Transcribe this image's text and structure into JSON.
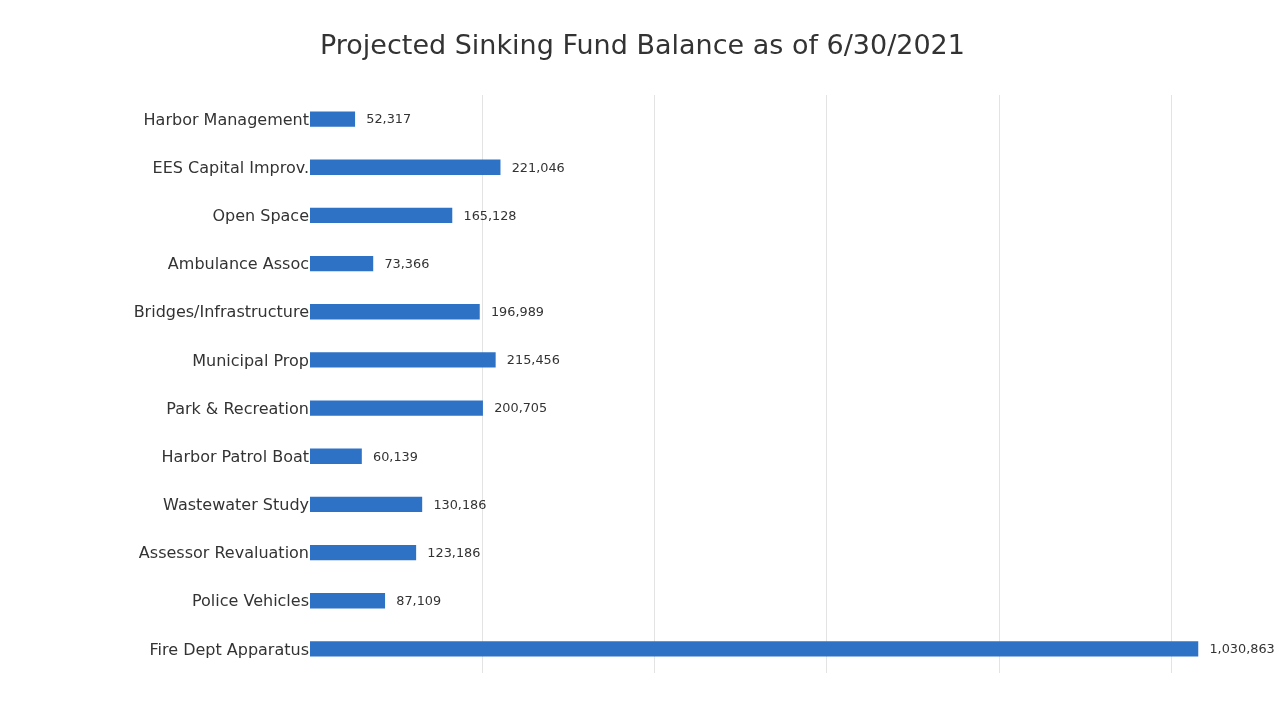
{
  "chart_data": {
    "type": "bar",
    "orientation": "horizontal",
    "title": "Projected Sinking Fund Balance as of 6/30/2021",
    "categories": [
      "Harbor Management",
      "EES Capital Improv.",
      "Open Space",
      "Ambulance Assoc",
      "Bridges/Infrastructure",
      "Municipal Prop",
      "Park & Recreation",
      "Harbor Patrol Boat",
      "Wastewater Study",
      "Assessor Revaluation",
      "Police Vehicles",
      "Fire Dept Apparatus"
    ],
    "values": [
      52317,
      221046,
      165128,
      73366,
      196989,
      215456,
      200705,
      60139,
      130186,
      123186,
      87109,
      1030863
    ],
    "value_labels": [
      "52,317",
      "221,046",
      "165,128",
      "73,366",
      "196,989",
      "215,456",
      "200,705",
      "60,139",
      "130,186",
      "123,186",
      "87,109",
      "1,030,863"
    ],
    "color": "#2e72c6",
    "grid": "x",
    "tick_labels": "y"
  }
}
